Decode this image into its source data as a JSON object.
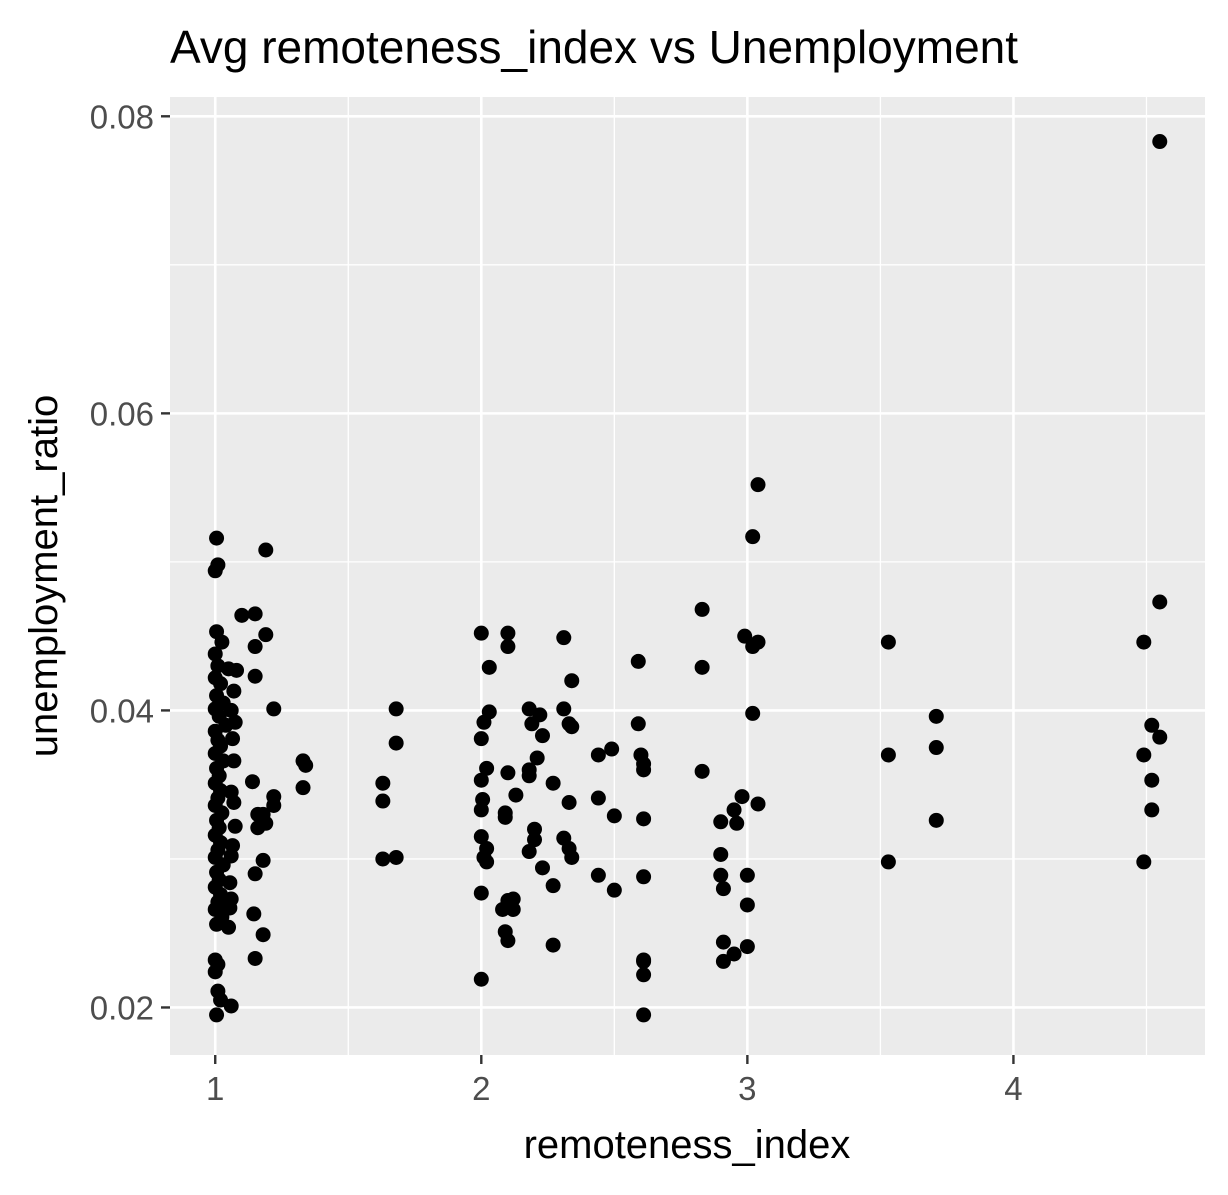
{
  "chart_data": {
    "type": "scatter",
    "title": "Avg remoteness_index vs Unemployment",
    "xlabel": "remoteness_index",
    "ylabel": "unemployment_ratio",
    "xlim": [
      0.83,
      4.72
    ],
    "ylim": [
      0.0168,
      0.0813
    ],
    "x_major_ticks": [
      1,
      2,
      3,
      4
    ],
    "x_tick_labels": [
      "1",
      "2",
      "3",
      "4"
    ],
    "x_minor_ticks": [
      1.5,
      2.5,
      3.5,
      4.5
    ],
    "y_major_ticks": [
      0.02,
      0.04,
      0.06,
      0.08
    ],
    "y_tick_labels": [
      "0.02",
      "0.04",
      "0.06",
      "0.08"
    ],
    "y_minor_ticks": [
      0.03,
      0.05,
      0.07
    ],
    "grid": true,
    "panel_background": "#EBEBEB",
    "grid_color": "#FFFFFF",
    "point_color": "#000000",
    "points": [
      [
        1.005,
        0.0516
      ],
      [
        1.01,
        0.0498
      ],
      [
        1.0,
        0.0494
      ],
      [
        1.005,
        0.0453
      ],
      [
        1.025,
        0.0446
      ],
      [
        1.0,
        0.0438
      ],
      [
        1.01,
        0.043
      ],
      [
        1.0,
        0.0422
      ],
      [
        1.02,
        0.0418
      ],
      [
        1.005,
        0.041
      ],
      [
        1.03,
        0.0405
      ],
      [
        1.0,
        0.0401
      ],
      [
        1.015,
        0.0396
      ],
      [
        1.04,
        0.039
      ],
      [
        1.0,
        0.0386
      ],
      [
        1.01,
        0.038
      ],
      [
        1.02,
        0.0376
      ],
      [
        1.0,
        0.0371
      ],
      [
        1.03,
        0.0366
      ],
      [
        1.005,
        0.0361
      ],
      [
        1.015,
        0.0356
      ],
      [
        1.0,
        0.0351
      ],
      [
        1.02,
        0.0346
      ],
      [
        1.01,
        0.0341
      ],
      [
        1.0,
        0.0336
      ],
      [
        1.025,
        0.0331
      ],
      [
        1.005,
        0.0326
      ],
      [
        1.015,
        0.0321
      ],
      [
        1.0,
        0.0316
      ],
      [
        1.02,
        0.0311
      ],
      [
        1.01,
        0.0306
      ],
      [
        1.0,
        0.0301
      ],
      [
        1.03,
        0.0296
      ],
      [
        1.005,
        0.0291
      ],
      [
        1.015,
        0.0286
      ],
      [
        1.0,
        0.0281
      ],
      [
        1.02,
        0.0276
      ],
      [
        1.01,
        0.0271
      ],
      [
        1.0,
        0.0266
      ],
      [
        1.025,
        0.0261
      ],
      [
        1.005,
        0.0256
      ],
      [
        1.0,
        0.0232
      ],
      [
        1.01,
        0.0229
      ],
      [
        1.0,
        0.0224
      ],
      [
        1.01,
        0.0211
      ],
      [
        1.02,
        0.0205
      ],
      [
        1.005,
        0.0195
      ],
      [
        1.06,
        0.0201
      ],
      [
        1.05,
        0.0428
      ],
      [
        1.08,
        0.0427
      ],
      [
        1.07,
        0.0413
      ],
      [
        1.06,
        0.04
      ],
      [
        1.075,
        0.0392
      ],
      [
        1.065,
        0.0381
      ],
      [
        1.07,
        0.0366
      ],
      [
        1.06,
        0.0345
      ],
      [
        1.07,
        0.0338
      ],
      [
        1.075,
        0.0322
      ],
      [
        1.065,
        0.0309
      ],
      [
        1.06,
        0.0302
      ],
      [
        1.055,
        0.0284
      ],
      [
        1.06,
        0.0273
      ],
      [
        1.055,
        0.0267
      ],
      [
        1.05,
        0.0254
      ],
      [
        1.1,
        0.0464
      ],
      [
        1.15,
        0.0465
      ],
      [
        1.15,
        0.0443
      ],
      [
        1.15,
        0.0423
      ],
      [
        1.19,
        0.0508
      ],
      [
        1.19,
        0.0451
      ],
      [
        1.22,
        0.0401
      ],
      [
        1.14,
        0.0352
      ],
      [
        1.22,
        0.0342
      ],
      [
        1.22,
        0.0336
      ],
      [
        1.18,
        0.033
      ],
      [
        1.16,
        0.033
      ],
      [
        1.19,
        0.0324
      ],
      [
        1.16,
        0.0321
      ],
      [
        1.18,
        0.0299
      ],
      [
        1.15,
        0.029
      ],
      [
        1.145,
        0.0263
      ],
      [
        1.18,
        0.0249
      ],
      [
        1.15,
        0.0233
      ],
      [
        1.33,
        0.0366
      ],
      [
        1.34,
        0.0363
      ],
      [
        1.33,
        0.0348
      ],
      [
        1.63,
        0.0351
      ],
      [
        1.63,
        0.0339
      ],
      [
        1.63,
        0.03
      ],
      [
        1.68,
        0.0401
      ],
      [
        1.68,
        0.0378
      ],
      [
        1.68,
        0.0301
      ],
      [
        2.0,
        0.0452
      ],
      [
        2.0,
        0.0381
      ],
      [
        2.01,
        0.0392
      ],
      [
        2.02,
        0.0361
      ],
      [
        2.0,
        0.0353
      ],
      [
        2.005,
        0.034
      ],
      [
        2.0,
        0.0333
      ],
      [
        2.0,
        0.0315
      ],
      [
        2.02,
        0.0307
      ],
      [
        2.01,
        0.0301
      ],
      [
        2.02,
        0.0298
      ],
      [
        2.0,
        0.0277
      ],
      [
        2.0,
        0.0219
      ],
      [
        2.03,
        0.0429
      ],
      [
        2.03,
        0.0399
      ],
      [
        2.1,
        0.0452
      ],
      [
        2.1,
        0.0443
      ],
      [
        2.09,
        0.0331
      ],
      [
        2.1,
        0.0358
      ],
      [
        2.09,
        0.0328
      ],
      [
        2.1,
        0.0272
      ],
      [
        2.12,
        0.0273
      ],
      [
        2.08,
        0.0266
      ],
      [
        2.12,
        0.0266
      ],
      [
        2.09,
        0.0251
      ],
      [
        2.1,
        0.0245
      ],
      [
        2.13,
        0.0343
      ],
      [
        2.18,
        0.0401
      ],
      [
        2.22,
        0.0397
      ],
      [
        2.19,
        0.0391
      ],
      [
        2.23,
        0.0383
      ],
      [
        2.21,
        0.0368
      ],
      [
        2.18,
        0.036
      ],
      [
        2.18,
        0.0356
      ],
      [
        2.2,
        0.032
      ],
      [
        2.2,
        0.0313
      ],
      [
        2.18,
        0.0305
      ],
      [
        2.23,
        0.0294
      ],
      [
        2.27,
        0.0351
      ],
      [
        2.27,
        0.0282
      ],
      [
        2.27,
        0.0242
      ],
      [
        2.31,
        0.0449
      ],
      [
        2.31,
        0.0401
      ],
      [
        2.33,
        0.0391
      ],
      [
        2.34,
        0.0389
      ],
      [
        2.34,
        0.042
      ],
      [
        2.33,
        0.0338
      ],
      [
        2.31,
        0.0314
      ],
      [
        2.33,
        0.0307
      ],
      [
        2.34,
        0.0301
      ],
      [
        2.44,
        0.037
      ],
      [
        2.44,
        0.0341
      ],
      [
        2.44,
        0.0289
      ],
      [
        2.49,
        0.0374
      ],
      [
        2.5,
        0.0329
      ],
      [
        2.5,
        0.0279
      ],
      [
        2.59,
        0.0433
      ],
      [
        2.59,
        0.0391
      ],
      [
        2.6,
        0.037
      ],
      [
        2.61,
        0.0364
      ],
      [
        2.61,
        0.036
      ],
      [
        2.61,
        0.0327
      ],
      [
        2.61,
        0.0288
      ],
      [
        2.61,
        0.0232
      ],
      [
        2.61,
        0.0231
      ],
      [
        2.61,
        0.0222
      ],
      [
        2.61,
        0.0195
      ],
      [
        2.83,
        0.0468
      ],
      [
        2.83,
        0.0429
      ],
      [
        2.83,
        0.0359
      ],
      [
        2.9,
        0.0325
      ],
      [
        2.9,
        0.0303
      ],
      [
        2.9,
        0.0289
      ],
      [
        2.91,
        0.028
      ],
      [
        2.91,
        0.0244
      ],
      [
        2.91,
        0.0231
      ],
      [
        2.95,
        0.0333
      ],
      [
        2.95,
        0.0236
      ],
      [
        2.96,
        0.0324
      ],
      [
        2.98,
        0.0342
      ],
      [
        2.99,
        0.045
      ],
      [
        3.0,
        0.0289
      ],
      [
        3.0,
        0.0269
      ],
      [
        3.0,
        0.0241
      ],
      [
        3.02,
        0.0443
      ],
      [
        3.02,
        0.0517
      ],
      [
        3.02,
        0.0398
      ],
      [
        3.04,
        0.0552
      ],
      [
        3.04,
        0.0446
      ],
      [
        3.04,
        0.0337
      ],
      [
        3.53,
        0.0446
      ],
      [
        3.53,
        0.037
      ],
      [
        3.53,
        0.0298
      ],
      [
        3.71,
        0.0396
      ],
      [
        3.71,
        0.0375
      ],
      [
        3.71,
        0.0326
      ],
      [
        4.49,
        0.0446
      ],
      [
        4.49,
        0.037
      ],
      [
        4.49,
        0.0298
      ],
      [
        4.52,
        0.039
      ],
      [
        4.52,
        0.0353
      ],
      [
        4.52,
        0.0333
      ],
      [
        4.55,
        0.0783
      ],
      [
        4.55,
        0.0473
      ],
      [
        4.55,
        0.0382
      ]
    ]
  }
}
